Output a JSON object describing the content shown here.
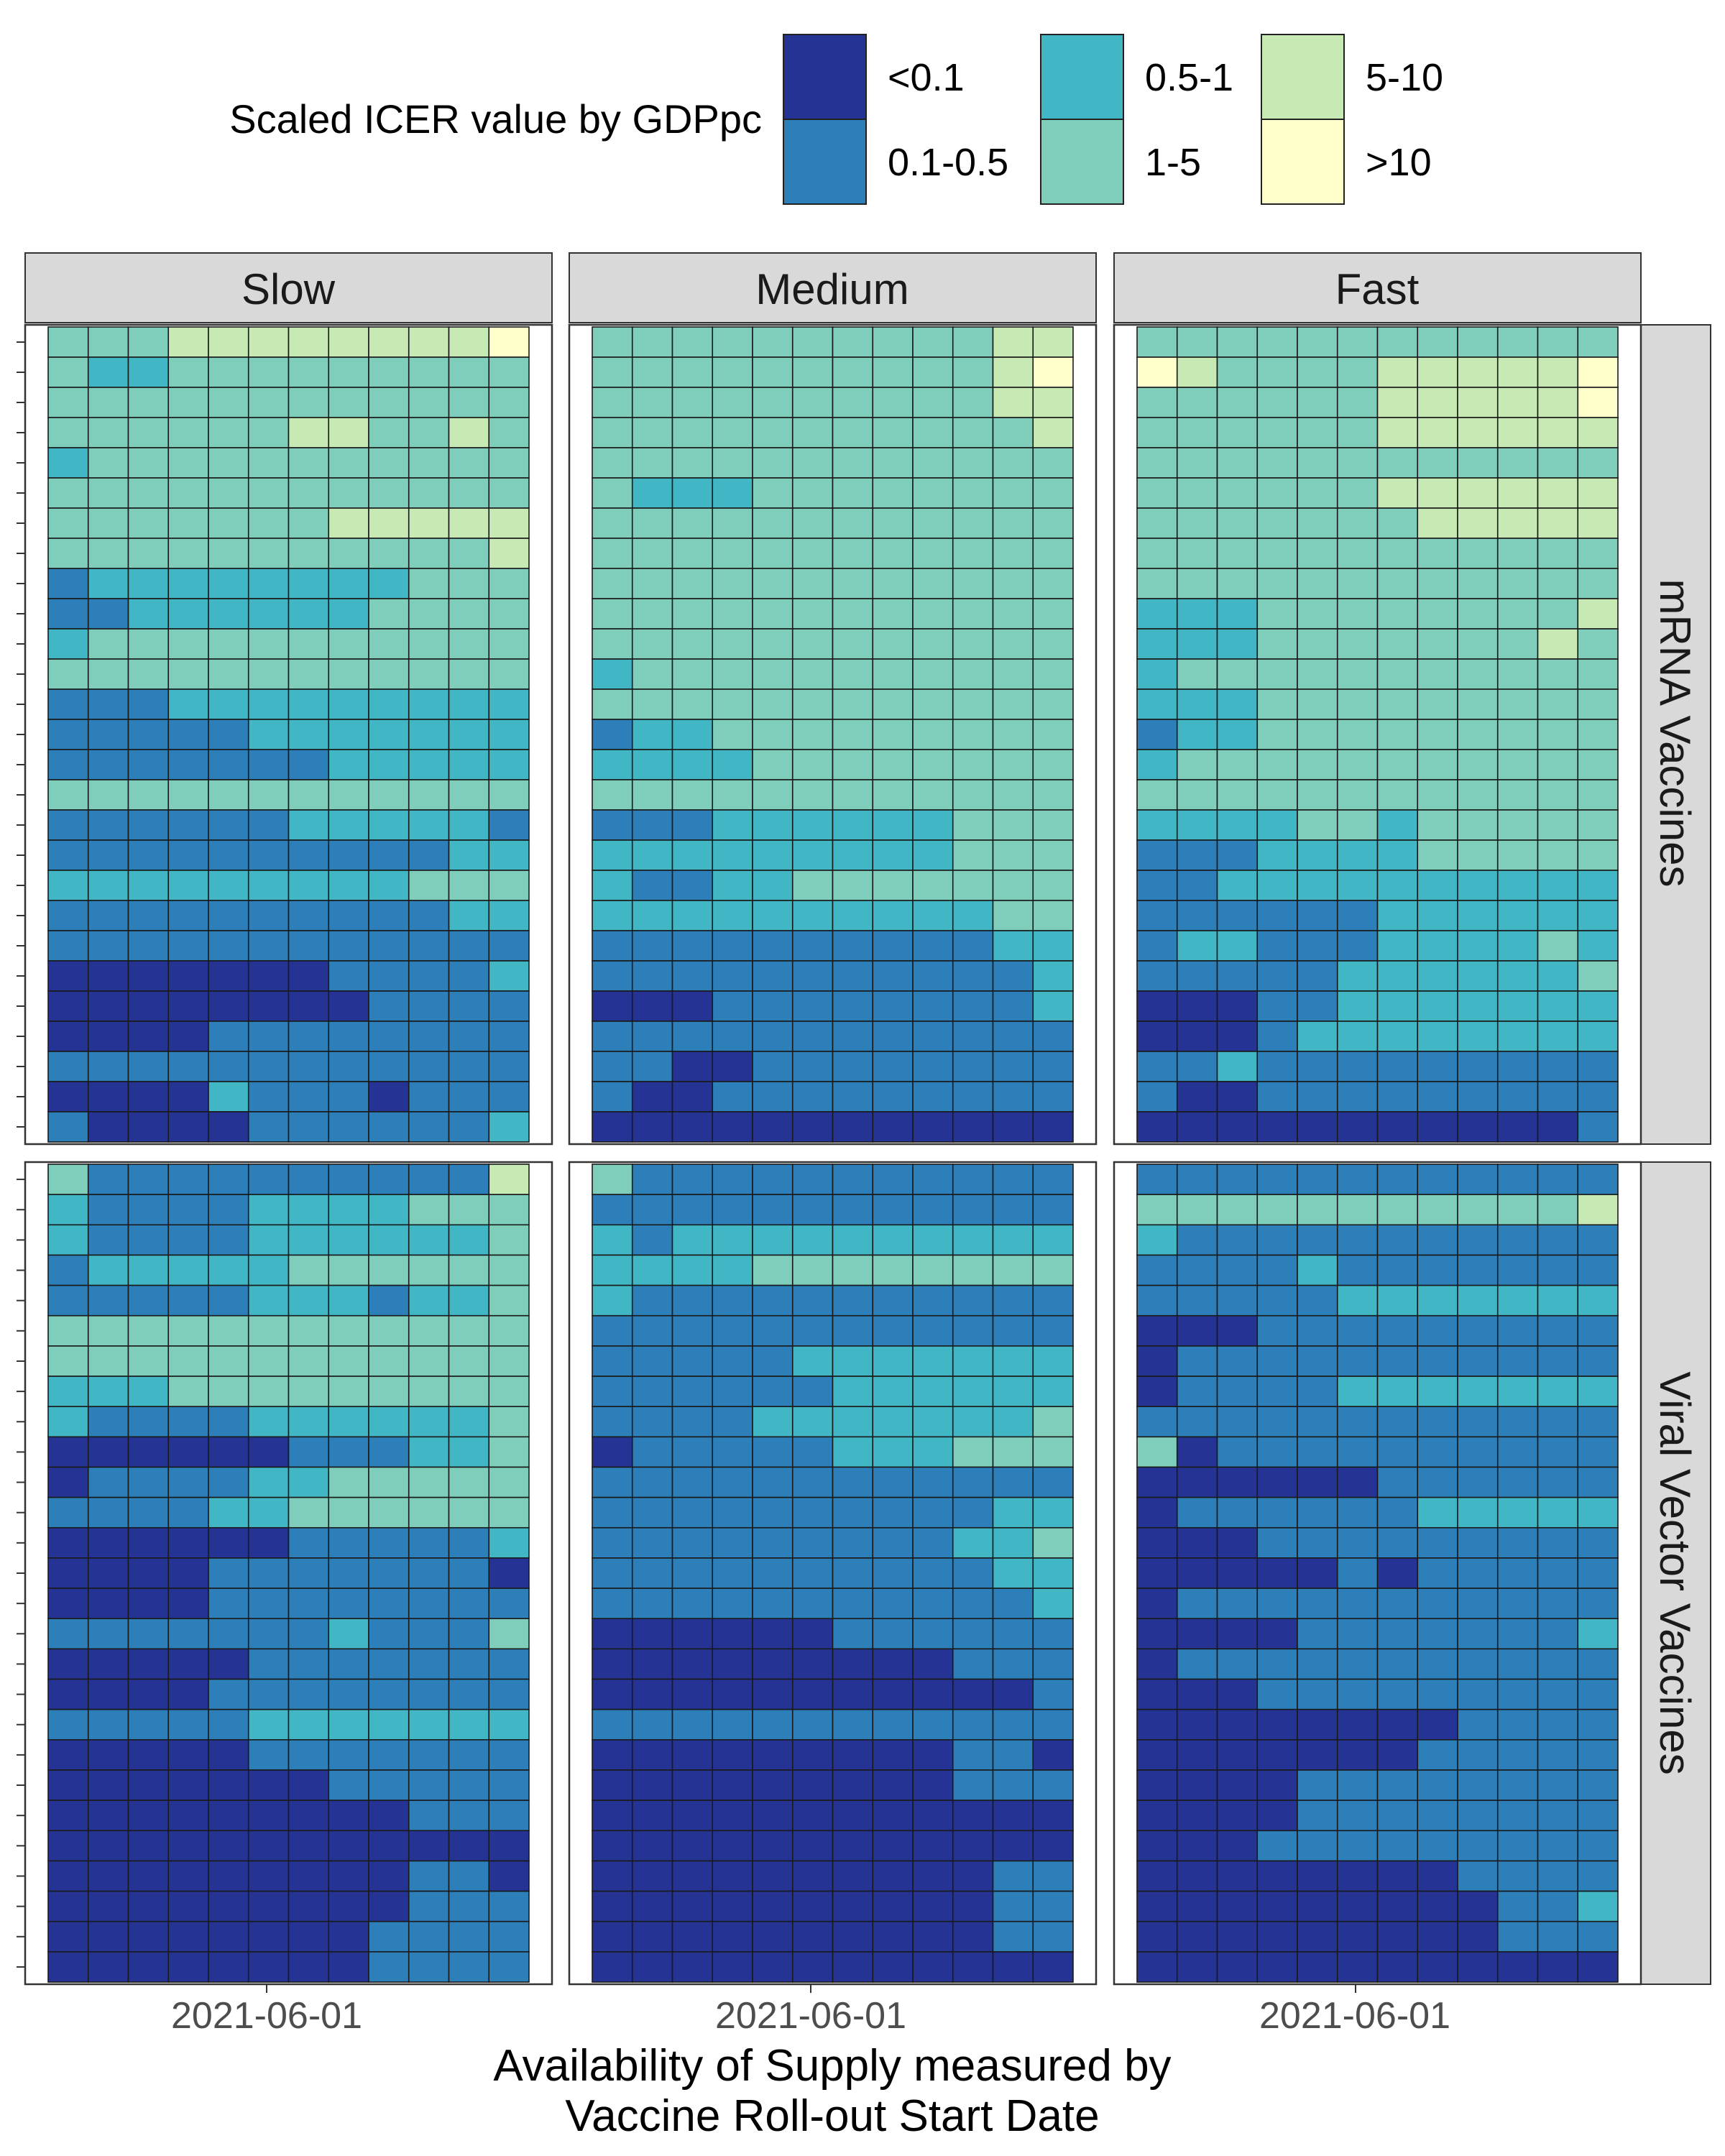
{
  "chart_data": {
    "type": "heatmap",
    "legend": {
      "title": "Scaled ICER value by GDPpc",
      "placement": "top",
      "categories": [
        "<0.1",
        "0.1-0.5",
        "0.5-1",
        "1-5",
        "5-10",
        ">10"
      ],
      "colors": [
        "#253494",
        "#2c7fb8",
        "#41b6c4",
        "#7fcdbb",
        "#c7e9b4",
        "#ffffcc"
      ]
    },
    "x_axis": {
      "label": "Availability of Supply measured by\nVaccine Roll-out Start Date",
      "tick_labels": [
        "2021-06-01"
      ]
    },
    "y_axis": {
      "tick_labels_shown": false
    },
    "columns": [
      "Slow",
      "Medium",
      "Fast"
    ],
    "rows": [
      "mRNA Vaccines",
      "Viral Vector Vaccines"
    ],
    "panels": [
      {
        "row": "mRNA Vaccines",
        "column": "Slow",
        "grid": [
          "333444444445",
          "322333333333",
          "333333333333",
          "333333443343",
          "233333333333",
          "333333333333",
          "333333344444",
          "333333333334",
          "122222222333",
          "112222223333",
          "233333333333",
          "333333333333",
          "111222222222",
          "111112222222",
          "111111122222",
          "333333333333",
          "111111222221",
          "111111111122",
          "222222222333",
          "111111111122",
          "111111111111",
          "000000011112",
          "000000001111",
          "000011111111",
          "111111111111",
          "000021110111",
          "100001111112"
        ]
      },
      {
        "row": "mRNA Vaccines",
        "column": "Medium",
        "grid": [
          "333333333344",
          "333333333345",
          "333333333344",
          "333333333334",
          "333333333333",
          "322233333333",
          "333333333333",
          "333333333333",
          "333333333333",
          "333333333333",
          "333333333333",
          "233333333333",
          "333333333333",
          "122333333333",
          "222233333333",
          "333333333333",
          "111222222333",
          "222222222333",
          "211223333333",
          "222222222233",
          "111111111122",
          "111111111112",
          "000111111112",
          "111111111111",
          "110011111111",
          "100111111111",
          "000000000000"
        ]
      },
      {
        "row": "mRNA Vaccines",
        "column": "Fast",
        "grid": [
          "333333333333",
          "543333444445",
          "333333444445",
          "333333444444",
          "333333333333",
          "333333444444",
          "333333344444",
          "333333333333",
          "333333333333",
          "222333333334",
          "222333333343",
          "233333333333",
          "222333333333",
          "122333333333",
          "233333333333",
          "333333333333",
          "222233233333",
          "111222233333",
          "112222222222",
          "111111222222",
          "122111222232",
          "111112222223",
          "000112222222",
          "000122222222",
          "112111111111",
          "100111111111",
          "000000000001"
        ]
      }
    ]
  },
  "extra_panels": [
    {
      "row": "Viral Vector Vaccines",
      "column": "Slow",
      "grid": [
        "311111111114",
        "211112222333",
        "211112222223",
        "122222333333",
        "111112221223",
        "333333333333",
        "333333333333",
        "222333333333",
        "211112222223",
        "000000111223",
        "011112233333",
        "111122333333",
        "000000111112",
        "000011111110",
        "000011111111",
        "111111121113",
        "000001111111",
        "000011111111",
        "111112222222",
        "000001111111",
        "000000011111",
        "000000000111",
        "000000000000",
        "000000000110",
        "000000000111",
        "000000001111",
        "000000001111"
      ]
    },
    {
      "row": "Viral Vector Vaccines",
      "column": "Medium",
      "grid": [
        "311111111111",
        "111111111111",
        "212222222222",
        "222233333333",
        "211111111111",
        "111111111111",
        "111112222222",
        "111111222222",
        "111122222223",
        "011111222333",
        "111111111111",
        "111111111122",
        "111111111223",
        "111111111122",
        "111111111112",
        "000000111111",
        "000000000111",
        "000000000001",
        "111111111111",
        "000000000110",
        "000000000111",
        "000000000000",
        "000000000000",
        "000000000011",
        "000000000011",
        "000000000011",
        "000000000000"
      ]
    },
    {
      "row": "Viral Vector Vaccines",
      "column": "Fast",
      "grid": [
        "111111111111",
        "333333333334",
        "211111111111",
        "111121111111",
        "111112222222",
        "000111111111",
        "011111111111",
        "011112222222",
        "111111111111",
        "301111111111",
        "000000111111",
        "011111122222",
        "000111111111",
        "000001011111",
        "011111111111",
        "000011111112",
        "011111111111",
        "000111111111",
        "000000001111",
        "000000011111",
        "000011111111",
        "000011111111",
        "000111111111",
        "000000001111",
        "000000000112",
        "000000000111",
        "000000000000"
      ]
    }
  ]
}
